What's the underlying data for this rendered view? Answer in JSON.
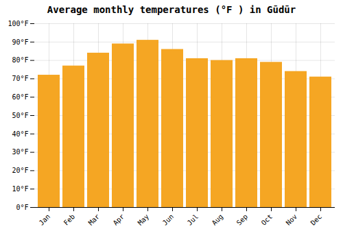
{
  "chart_data": {
    "type": "bar",
    "title": "Average monthly temperatures (°F ) in Gūdūr",
    "categories": [
      "Jan",
      "Feb",
      "Mar",
      "Apr",
      "May",
      "Jun",
      "Jul",
      "Aug",
      "Sep",
      "Oct",
      "Nov",
      "Dec"
    ],
    "values": [
      72,
      77,
      84,
      89,
      91,
      86,
      81,
      80,
      81,
      79,
      74,
      71
    ],
    "color": "#F5A623",
    "ylim": [
      0,
      100
    ],
    "yticks": [
      {
        "value": 0,
        "label": "0°F"
      },
      {
        "value": 10,
        "label": "10°F"
      },
      {
        "value": 20,
        "label": "20°F"
      },
      {
        "value": 30,
        "label": "30°F"
      },
      {
        "value": 40,
        "label": "40°F"
      },
      {
        "value": 50,
        "label": "50°F"
      },
      {
        "value": 60,
        "label": "60°F"
      },
      {
        "value": 70,
        "label": "70°F"
      },
      {
        "value": 80,
        "label": "80°F"
      },
      {
        "value": 90,
        "label": "90°F"
      },
      {
        "value": 100,
        "label": "100°F"
      }
    ],
    "grid": true
  }
}
